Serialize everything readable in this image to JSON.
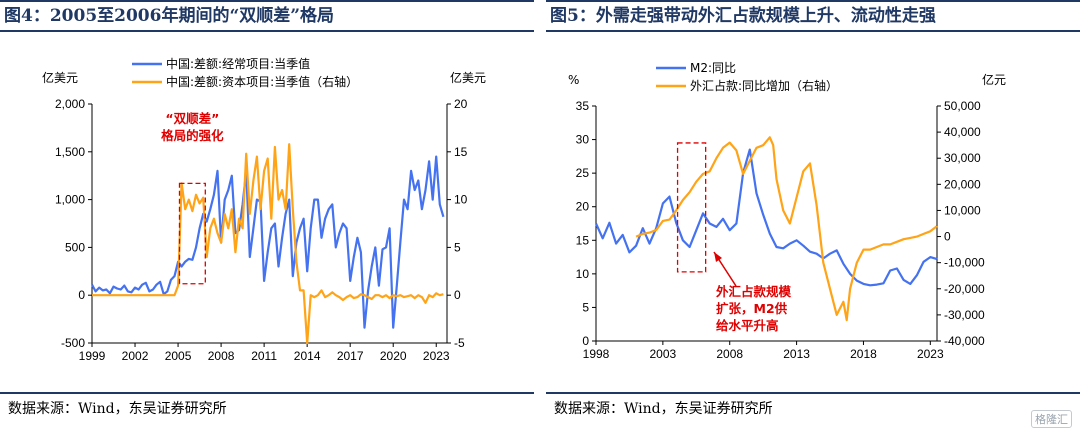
{
  "panels": [
    {
      "title": "图4：2005至2006年期间的“双顺差”格局",
      "source": "数据来源：Wind，东吴证券研究所"
    },
    {
      "title": "图5：外需走强带动外汇占款规模上升、流动性走强",
      "source": "数据来源：Wind，东吴证券研究所"
    }
  ],
  "watermark": "格隆汇",
  "chart_data": [
    {
      "type": "line",
      "title": "2005至2006年期间的“双顺差”格局",
      "y_left_label": "亿美元",
      "y_right_label": "亿美元",
      "ylim_left": [
        -500,
        2000
      ],
      "ylim_right": [
        -5,
        20
      ],
      "y_ticks_left": [
        "2,000",
        "1,500",
        "1,000",
        "500",
        "0",
        "-500"
      ],
      "y_ticks_right": [
        "20",
        "15",
        "10",
        "5",
        "0",
        "-5"
      ],
      "x_range": [
        1999,
        2023.75
      ],
      "x_ticks": [
        "1999",
        "2002",
        "2005",
        "2008",
        "2011",
        "2014",
        "2017",
        "2020",
        "2023"
      ],
      "annotation": [
        "“双顺差”",
        "格局的强化"
      ],
      "highlight": {
        "x": [
          2005.1,
          2006.9
        ],
        "y_right": [
          1.2,
          11.7
        ]
      },
      "series": [
        {
          "name": "中国:差额:经常项目:当季值",
          "axis": "left",
          "color": "#4472f0",
          "x": [
            1999,
            1999.25,
            1999.5,
            1999.75,
            2000,
            2000.25,
            2000.5,
            2000.75,
            2001,
            2001.25,
            2001.5,
            2001.75,
            2002,
            2002.25,
            2002.5,
            2002.75,
            2003,
            2003.25,
            2003.5,
            2003.75,
            2004,
            2004.25,
            2004.5,
            2004.75,
            2005,
            2005.25,
            2005.5,
            2005.75,
            2006,
            2006.25,
            2006.5,
            2006.75,
            2007,
            2007.25,
            2007.5,
            2007.75,
            2008,
            2008.25,
            2008.5,
            2008.75,
            2009,
            2009.25,
            2009.5,
            2009.75,
            2010,
            2010.25,
            2010.5,
            2010.75,
            2011,
            2011.25,
            2011.5,
            2011.75,
            2012,
            2012.25,
            2012.5,
            2012.75,
            2013,
            2013.25,
            2013.5,
            2013.75,
            2014,
            2014.25,
            2014.5,
            2014.75,
            2015,
            2015.25,
            2015.5,
            2015.75,
            2016,
            2016.25,
            2016.5,
            2016.75,
            2017,
            2017.25,
            2017.5,
            2017.75,
            2018,
            2018.25,
            2018.5,
            2018.75,
            2019,
            2019.25,
            2019.5,
            2019.75,
            2020,
            2020.25,
            2020.5,
            2020.75,
            2021,
            2021.25,
            2021.5,
            2021.75,
            2022,
            2022.25,
            2022.5,
            2022.75,
            2023,
            2023.25,
            2023.5
          ],
          "y": [
            110,
            40,
            80,
            50,
            60,
            20,
            90,
            70,
            60,
            100,
            40,
            30,
            80,
            60,
            110,
            130,
            40,
            60,
            110,
            140,
            10,
            40,
            160,
            200,
            350,
            300,
            350,
            380,
            370,
            500,
            700,
            850,
            770,
            900,
            1050,
            1300,
            550,
            1000,
            1100,
            1250,
            650,
            680,
            950,
            1300,
            400,
            700,
            1000,
            980,
            150,
            450,
            700,
            750,
            300,
            600,
            850,
            1000,
            200,
            550,
            700,
            800,
            250,
            700,
            1000,
            1000,
            600,
            800,
            900,
            950,
            500,
            650,
            750,
            700,
            150,
            400,
            600,
            450,
            -340,
            50,
            300,
            500,
            100,
            480,
            500,
            700,
            -340,
            100,
            560,
            1000,
            900,
            1300,
            1100,
            1200,
            900,
            1100,
            1400,
            1000,
            1450,
            950,
            820
          ]
        },
        {
          "name": "中国:差额:资本项目:当季值（右轴）",
          "axis": "right",
          "color": "#ffa317",
          "x": [
            1999,
            2000,
            2001,
            2002,
            2003,
            2004,
            2004.75,
            2005,
            2005.25,
            2005.5,
            2005.75,
            2006,
            2006.25,
            2006.5,
            2006.75,
            2007,
            2007.25,
            2007.5,
            2007.75,
            2008,
            2008.25,
            2008.5,
            2008.75,
            2009,
            2009.25,
            2009.5,
            2009.75,
            2010,
            2010.25,
            2010.5,
            2010.75,
            2011,
            2011.25,
            2011.5,
            2011.75,
            2012,
            2012.25,
            2012.5,
            2012.75,
            2013,
            2013.25,
            2013.5,
            2013.75,
            2014,
            2014.25,
            2014.5,
            2014.75,
            2015,
            2015.25,
            2015.5,
            2015.75,
            2016,
            2016.25,
            2016.5,
            2016.75,
            2017,
            2017.25,
            2017.5,
            2017.75,
            2018,
            2018.25,
            2018.5,
            2018.75,
            2019,
            2019.25,
            2019.5,
            2019.75,
            2020,
            2020.25,
            2020.5,
            2020.75,
            2021,
            2021.25,
            2021.5,
            2021.75,
            2022,
            2022.25,
            2022.5,
            2022.75,
            2023,
            2023.25,
            2023.5
          ],
          "y": [
            0,
            0,
            0,
            0,
            0,
            0,
            0,
            1,
            11.7,
            9,
            10,
            8.8,
            10.5,
            9.6,
            10.2,
            4,
            7,
            8,
            6.5,
            5.5,
            8.5,
            7,
            9,
            4.5,
            8,
            7,
            14.8,
            8.5,
            12,
            14.5,
            9,
            13,
            14.3,
            8,
            15.5,
            10,
            11,
            9,
            15.8,
            9,
            3.5,
            0.5,
            0.5,
            -5,
            0,
            -0.2,
            0,
            0.5,
            -0.2,
            0,
            0.3,
            0,
            -0.2,
            -0.5,
            -0.2,
            0,
            -0.3,
            -0.2,
            0.1,
            0,
            -0.2,
            -0.4,
            0,
            0,
            -0.2,
            0,
            -0.3,
            0,
            -0.1,
            0,
            -0.2,
            -0.1,
            0,
            -0.3,
            0,
            -0.2,
            -0.8,
            0,
            -0.2,
            0.2,
            0,
            0.1
          ]
        }
      ]
    },
    {
      "type": "line",
      "title": "外需走强带动外汇占款规模上升、流动性走强",
      "y_left_label": "%",
      "y_right_label": "亿元",
      "ylim_left": [
        0,
        35
      ],
      "ylim_right": [
        -40000,
        50000
      ],
      "y_ticks_left": [
        "35",
        "30",
        "25",
        "20",
        "15",
        "10",
        "5",
        "0"
      ],
      "y_ticks_right": [
        "50,000",
        "40,000",
        "30,000",
        "20,000",
        "10,000",
        "0",
        "-10,000",
        "-20,000",
        "-30,000",
        "-40,000"
      ],
      "x_range": [
        1998,
        2023.5
      ],
      "x_ticks": [
        "1998",
        "2003",
        "2008",
        "2013",
        "2018",
        "2023"
      ],
      "annotation": [
        "外汇占款规模",
        "扩张，M2供",
        "给水平升高"
      ],
      "highlight": {
        "x": [
          2004.1,
          2006.2
        ],
        "y_left": [
          10.3,
          29.5
        ]
      },
      "series": [
        {
          "name": "M2:同比",
          "axis": "left",
          "color": "#4472f0",
          "x": [
            1998,
            1998.5,
            1999,
            1999.5,
            2000,
            2000.5,
            2001,
            2001.5,
            2002,
            2002.5,
            2003,
            2003.5,
            2004,
            2004.5,
            2005,
            2005.5,
            2006,
            2006.5,
            2007,
            2007.5,
            2008,
            2008.5,
            2009,
            2009.5,
            2010,
            2010.5,
            2011,
            2011.5,
            2012,
            2012.5,
            2013,
            2013.5,
            2014,
            2014.5,
            2015,
            2015.5,
            2016,
            2016.5,
            2017,
            2017.5,
            2018,
            2018.5,
            2019,
            2019.5,
            2020,
            2020.5,
            2021,
            2021.5,
            2022,
            2022.5,
            2023,
            2023.5
          ],
          "y": [
            17.5,
            15.3,
            17.6,
            14.5,
            15.8,
            13.2,
            14.2,
            16.8,
            14.5,
            16.8,
            20.5,
            21.5,
            17.6,
            15,
            14,
            16.5,
            19,
            17.5,
            17,
            18.2,
            16.5,
            17.5,
            25,
            28.5,
            22,
            18.8,
            16,
            14,
            13.8,
            14.5,
            15,
            14.2,
            13.3,
            13,
            12.3,
            13,
            13.5,
            11.5,
            10,
            9,
            8.5,
            8.3,
            8.4,
            8.6,
            10.5,
            10.8,
            9.1,
            8.5,
            9.8,
            11.8,
            12.5,
            12.2
          ]
        },
        {
          "name": "外汇占款:同比增加（右轴）",
          "axis": "right",
          "color": "#ffa317",
          "x": [
            2001,
            2001.5,
            2002,
            2002.5,
            2003,
            2003.5,
            2004,
            2004.5,
            2005,
            2005.5,
            2006,
            2006.5,
            2007,
            2007.5,
            2008,
            2008.5,
            2009,
            2009.5,
            2010,
            2010.5,
            2011,
            2011.25,
            2011.5,
            2012,
            2012.5,
            2013,
            2013.5,
            2014,
            2014.5,
            2015,
            2015.5,
            2016,
            2016.5,
            2016.75,
            2017,
            2017.5,
            2018,
            2018.5,
            2019,
            2019.5,
            2020,
            2020.5,
            2021,
            2021.5,
            2022,
            2022.5,
            2023,
            2023.5
          ],
          "y": [
            0,
            1000,
            1500,
            2500,
            6000,
            6500,
            10000,
            14000,
            17000,
            21000,
            24000,
            25000,
            30000,
            34000,
            36000,
            33000,
            24000,
            29000,
            34000,
            35000,
            38000,
            35000,
            22000,
            10000,
            5000,
            15000,
            25000,
            28000,
            12000,
            -10000,
            -20000,
            -30000,
            -25000,
            -32000,
            -20000,
            -10000,
            -5000,
            -5000,
            -4000,
            -3000,
            -3000,
            -2000,
            -1000,
            -500,
            0,
            1000,
            2000,
            4000
          ]
        }
      ]
    }
  ]
}
